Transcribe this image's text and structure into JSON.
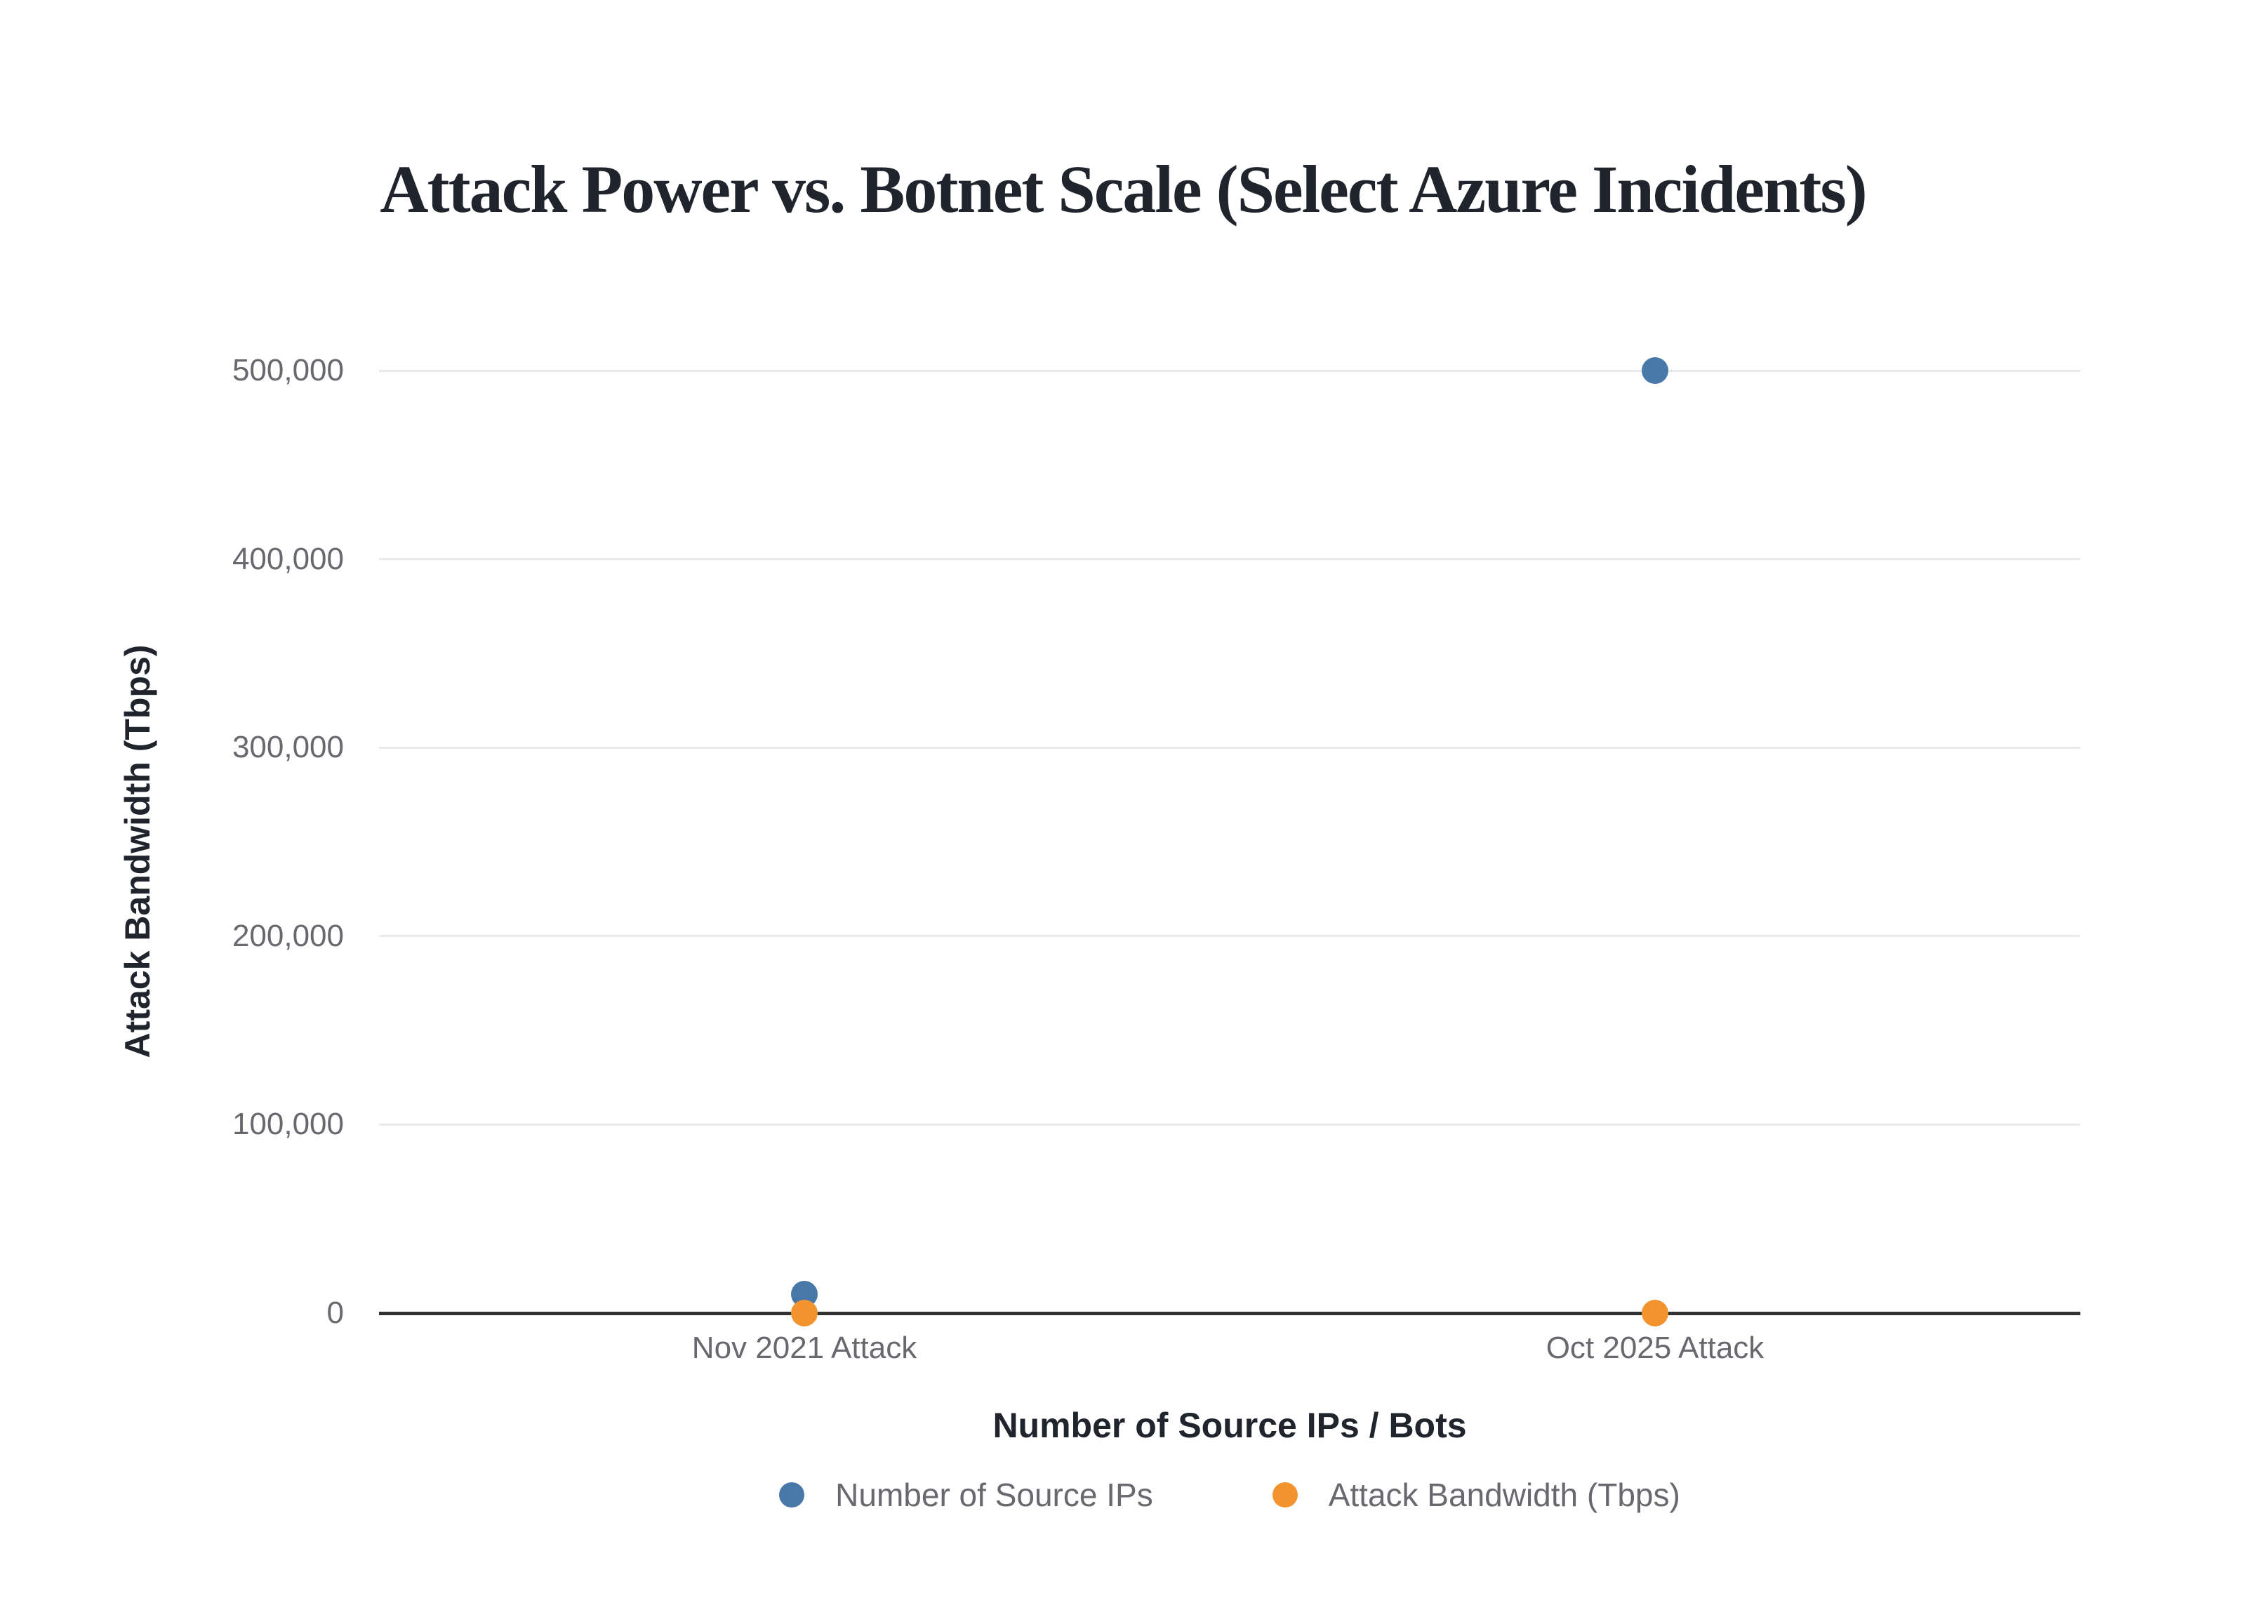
{
  "title": "Attack Power vs. Botnet Scale (Select Azure Incidents)",
  "chart_data": {
    "type": "scatter",
    "categories": [
      "Nov 2021 Attack",
      "Oct 2025 Attack"
    ],
    "series": [
      {
        "name": "Number of Source IPs",
        "color": "#4878A8",
        "values": [
          10000,
          500000
        ]
      },
      {
        "name": "Attack Bandwidth (Tbps)",
        "color": "#F2932E",
        "values": [
          3.47,
          15.72
        ]
      }
    ],
    "title": "Attack Power vs. Botnet Scale (Select Azure Incidents)",
    "xlabel": "Number of Source IPs / Bots",
    "ylabel": "Attack Bandwidth (Tbps)",
    "ylim": [
      0,
      500000
    ],
    "ytick_step": 100000,
    "ytick_labels": [
      "0",
      "100,000",
      "200,000",
      "300,000",
      "400,000",
      "500,000"
    ],
    "grid": true,
    "legend_position": "bottom"
  },
  "colors": {
    "text_dark": "#20242C",
    "text_gray": "#67696E",
    "gridline": "#E8E9EB",
    "axis_line": "#303234",
    "series_blue": "#4878A8",
    "series_orange": "#F2932E",
    "background": "#FFFFFF"
  }
}
